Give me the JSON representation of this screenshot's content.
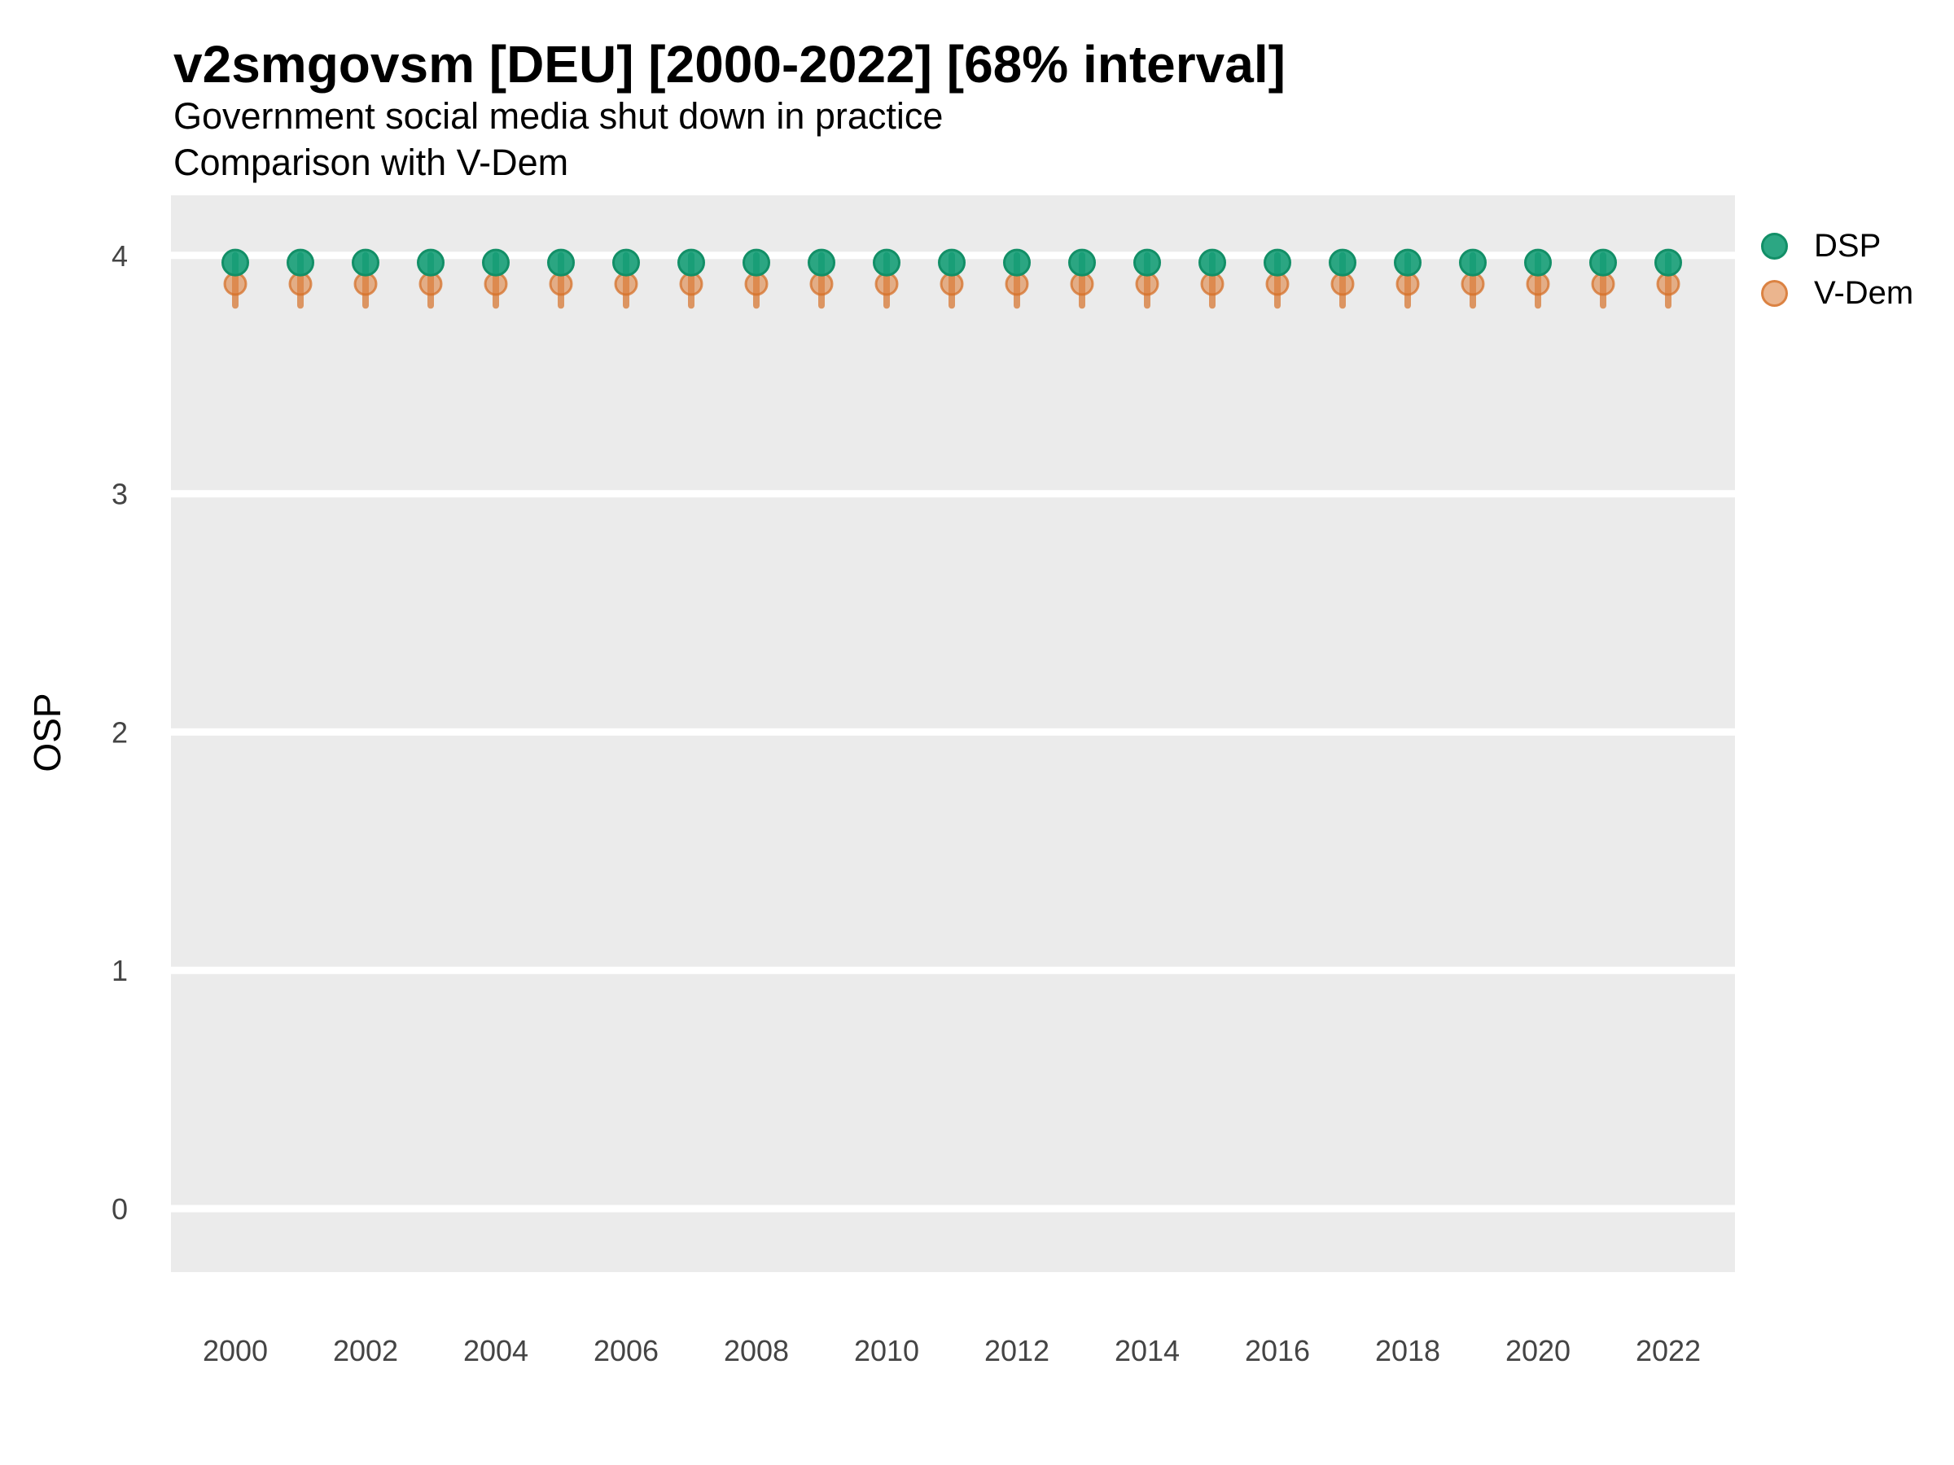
{
  "header": {
    "title": "v2smgovsm [DEU] [2000-2022] [68% interval]",
    "subtitle": "Government social media shut down in practice",
    "subtitle2": "Comparison with V-Dem"
  },
  "axes": {
    "y_label": "OSP",
    "y_ticks": [
      0,
      1,
      2,
      3,
      4
    ],
    "x_ticks": [
      2000,
      2002,
      2004,
      2006,
      2008,
      2010,
      2012,
      2014,
      2016,
      2018,
      2020,
      2022
    ]
  },
  "legend": {
    "items": [
      {
        "label": "DSP",
        "color": "#1aa078"
      },
      {
        "label": "V-Dem",
        "color": "#de8442"
      }
    ]
  },
  "style": {
    "panel_bg": "#ebebeb",
    "grid_color": "#ffffff",
    "dsp_fill": "rgba(26,160,120,0.92)",
    "dsp_stroke": "#128f67",
    "dsp_line": "#128f67",
    "vdem_fill": "rgba(222,132,66,0.6)",
    "vdem_stroke": "rgba(213,112,40,0.75)",
    "vdem_line": "rgba(213,112,40,0.7)"
  },
  "chart_data": {
    "type": "pointrange-scatter",
    "title": "v2smgovsm [DEU] [2000-2022] [68% interval]",
    "subtitle": "Government social media shut down in practice",
    "subtitle2": "Comparison with V-Dem",
    "xlabel": "",
    "ylabel": "OSP",
    "interval": "68%",
    "ylim": [
      -0.27,
      4.26
    ],
    "xlim": [
      1999,
      2023
    ],
    "grid": "horizontal-major-only",
    "legend_position": "right-top",
    "x": [
      2000,
      2001,
      2002,
      2003,
      2004,
      2005,
      2006,
      2007,
      2008,
      2009,
      2010,
      2011,
      2012,
      2013,
      2014,
      2015,
      2016,
      2017,
      2018,
      2019,
      2020,
      2021,
      2022
    ],
    "series": [
      {
        "name": "DSP",
        "median": [
          3.97,
          3.97,
          3.97,
          3.97,
          3.97,
          3.97,
          3.97,
          3.97,
          3.97,
          3.97,
          3.97,
          3.97,
          3.97,
          3.97,
          3.97,
          3.97,
          3.97,
          3.97,
          3.97,
          3.97,
          3.97,
          3.97,
          3.97
        ],
        "lo": [
          3.93,
          3.93,
          3.93,
          3.93,
          3.93,
          3.93,
          3.93,
          3.93,
          3.93,
          3.93,
          3.93,
          3.93,
          3.93,
          3.93,
          3.93,
          3.93,
          3.93,
          3.93,
          3.93,
          3.93,
          3.93,
          3.93,
          3.93
        ],
        "hi": [
          4.0,
          4.0,
          4.0,
          4.0,
          4.0,
          4.0,
          4.0,
          4.0,
          4.0,
          4.0,
          4.0,
          4.0,
          4.0,
          4.0,
          4.0,
          4.0,
          4.0,
          4.0,
          4.0,
          4.0,
          4.0,
          4.0,
          4.0
        ]
      },
      {
        "name": "V-Dem",
        "median": [
          3.88,
          3.88,
          3.88,
          3.88,
          3.88,
          3.88,
          3.88,
          3.88,
          3.88,
          3.88,
          3.88,
          3.88,
          3.88,
          3.88,
          3.88,
          3.88,
          3.88,
          3.88,
          3.88,
          3.88,
          3.88,
          3.88,
          3.88
        ],
        "lo": [
          3.79,
          3.79,
          3.79,
          3.79,
          3.79,
          3.79,
          3.79,
          3.79,
          3.79,
          3.79,
          3.79,
          3.79,
          3.79,
          3.79,
          3.79,
          3.79,
          3.79,
          3.79,
          3.79,
          3.79,
          3.79,
          3.79,
          3.79
        ],
        "hi": [
          3.97,
          3.97,
          3.97,
          3.97,
          3.97,
          3.97,
          3.97,
          3.97,
          3.97,
          3.97,
          3.97,
          3.97,
          3.97,
          3.97,
          3.97,
          3.97,
          3.97,
          3.97,
          3.97,
          3.97,
          3.97,
          3.97,
          3.97
        ]
      }
    ]
  }
}
